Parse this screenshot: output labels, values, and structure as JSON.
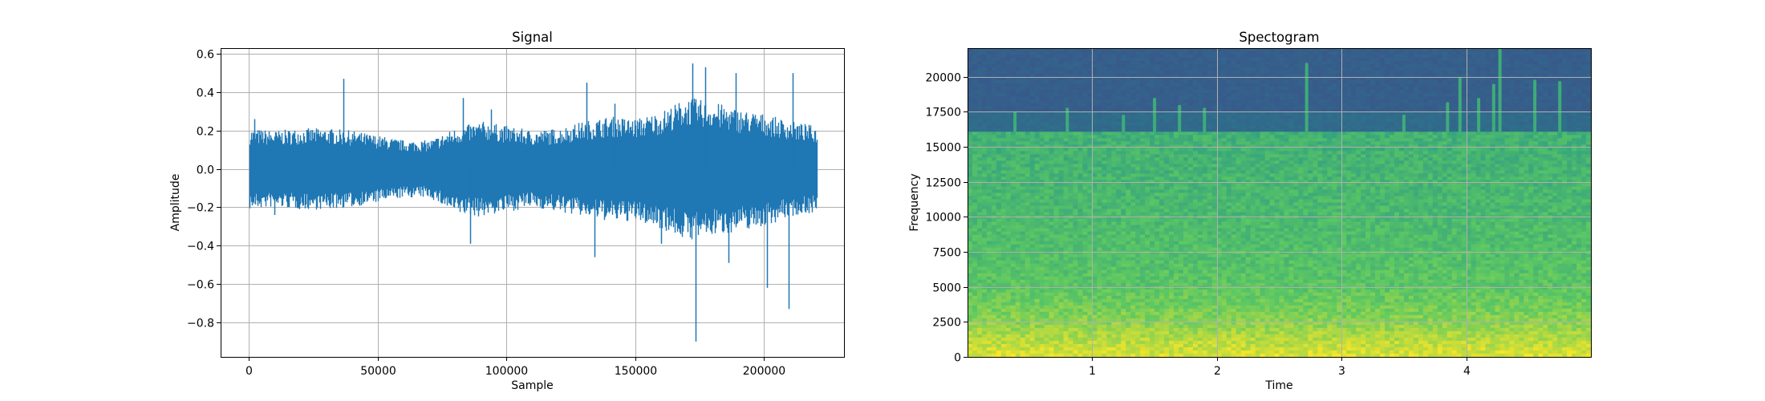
{
  "figure": {
    "background": "#ffffff"
  },
  "chart_data": [
    {
      "type": "line",
      "title": "Signal",
      "xlabel": "Sample",
      "ylabel": "Amplitude",
      "xlim": [
        -11000,
        231000
      ],
      "ylim": [
        -0.98,
        0.63
      ],
      "xticks": [
        0,
        50000,
        100000,
        150000,
        200000
      ],
      "xtick_labels": [
        "0",
        "50000",
        "100000",
        "150000",
        "200000"
      ],
      "yticks": [
        -0.8,
        -0.6,
        -0.4,
        -0.2,
        0.0,
        0.2,
        0.4,
        0.6
      ],
      "ytick_labels": [
        "−0.8",
        "−0.6",
        "−0.4",
        "−0.2",
        "0.0",
        "0.2",
        "0.4",
        "0.6"
      ],
      "grid": true,
      "color": "#1f77b4",
      "num_samples": 220500,
      "envelope": {
        "x": [
          0,
          10000,
          20000,
          30000,
          40000,
          50000,
          60000,
          70000,
          80000,
          90000,
          100000,
          110000,
          120000,
          130000,
          140000,
          150000,
          160000,
          170000,
          180000,
          190000,
          200000,
          210000,
          220000
        ],
        "upper": [
          0.17,
          0.16,
          0.17,
          0.17,
          0.16,
          0.14,
          0.12,
          0.12,
          0.17,
          0.2,
          0.18,
          0.16,
          0.17,
          0.2,
          0.22,
          0.21,
          0.24,
          0.3,
          0.28,
          0.25,
          0.23,
          0.2,
          0.18
        ],
        "lower": [
          -0.17,
          -0.16,
          -0.17,
          -0.17,
          -0.16,
          -0.14,
          -0.12,
          -0.12,
          -0.19,
          -0.2,
          -0.18,
          -0.16,
          -0.18,
          -0.2,
          -0.22,
          -0.22,
          -0.25,
          -0.3,
          -0.28,
          -0.26,
          -0.24,
          -0.2,
          -0.18
        ]
      },
      "peaks": [
        {
          "x": 2000,
          "y": 0.26
        },
        {
          "x": 36500,
          "y": 0.47
        },
        {
          "x": 83000,
          "y": 0.37
        },
        {
          "x": 94000,
          "y": 0.31
        },
        {
          "x": 131000,
          "y": 0.45
        },
        {
          "x": 142000,
          "y": 0.34
        },
        {
          "x": 172000,
          "y": 0.55
        },
        {
          "x": 177000,
          "y": 0.53
        },
        {
          "x": 189000,
          "y": 0.5
        },
        {
          "x": 211000,
          "y": 0.5
        },
        {
          "x": 134000,
          "y": -0.46
        },
        {
          "x": 86000,
          "y": -0.39
        },
        {
          "x": 173500,
          "y": -0.9
        },
        {
          "x": 201000,
          "y": -0.62
        },
        {
          "x": 209500,
          "y": -0.73
        },
        {
          "x": 186000,
          "y": -0.49
        },
        {
          "x": 160000,
          "y": -0.39
        },
        {
          "x": 10000,
          "y": -0.24
        }
      ]
    },
    {
      "type": "heatmap",
      "title": "Spectogram",
      "xlabel": "Time",
      "ylabel": "Frequency",
      "xlim": [
        0,
        5.0
      ],
      "ylim": [
        0,
        22050
      ],
      "xticks": [
        1,
        2,
        3,
        4
      ],
      "xtick_labels": [
        "1",
        "2",
        "3",
        "4"
      ],
      "yticks": [
        0,
        2500,
        5000,
        7500,
        10000,
        12500,
        15000,
        17500,
        20000
      ],
      "ytick_labels": [
        "0",
        "2500",
        "5000",
        "7500",
        "10000",
        "12500",
        "15000",
        "17500",
        "20000"
      ],
      "grid": true,
      "colormap": [
        "#440154",
        "#3b528b",
        "#21918c",
        "#5ec962",
        "#fde725"
      ],
      "band_cutoffs": [
        {
          "freq": 16000,
          "level": 0.6
        },
        {
          "freq": 17500,
          "level": 0.35
        },
        {
          "freq": 22050,
          "level": 0.3
        }
      ],
      "level_profile": {
        "freq": [
          0,
          1000,
          2500,
          5000,
          10000,
          16000
        ],
        "level": [
          0.95,
          0.9,
          0.82,
          0.73,
          0.68,
          0.64
        ]
      },
      "bright_events": [
        {
          "time": 0.38,
          "freq_top": 17500
        },
        {
          "time": 0.8,
          "freq_top": 17800
        },
        {
          "time": 1.25,
          "freq_top": 17300
        },
        {
          "time": 1.5,
          "freq_top": 18500
        },
        {
          "time": 1.7,
          "freq_top": 18000
        },
        {
          "time": 1.9,
          "freq_top": 17800
        },
        {
          "time": 2.72,
          "freq_top": 21000
        },
        {
          "time": 3.5,
          "freq_top": 17300
        },
        {
          "time": 3.85,
          "freq_top": 18200
        },
        {
          "time": 3.95,
          "freq_top": 20000
        },
        {
          "time": 4.1,
          "freq_top": 18500
        },
        {
          "time": 4.22,
          "freq_top": 19500
        },
        {
          "time": 4.27,
          "freq_top": 22000
        },
        {
          "time": 4.55,
          "freq_top": 19800
        },
        {
          "time": 4.75,
          "freq_top": 19700
        }
      ]
    }
  ]
}
